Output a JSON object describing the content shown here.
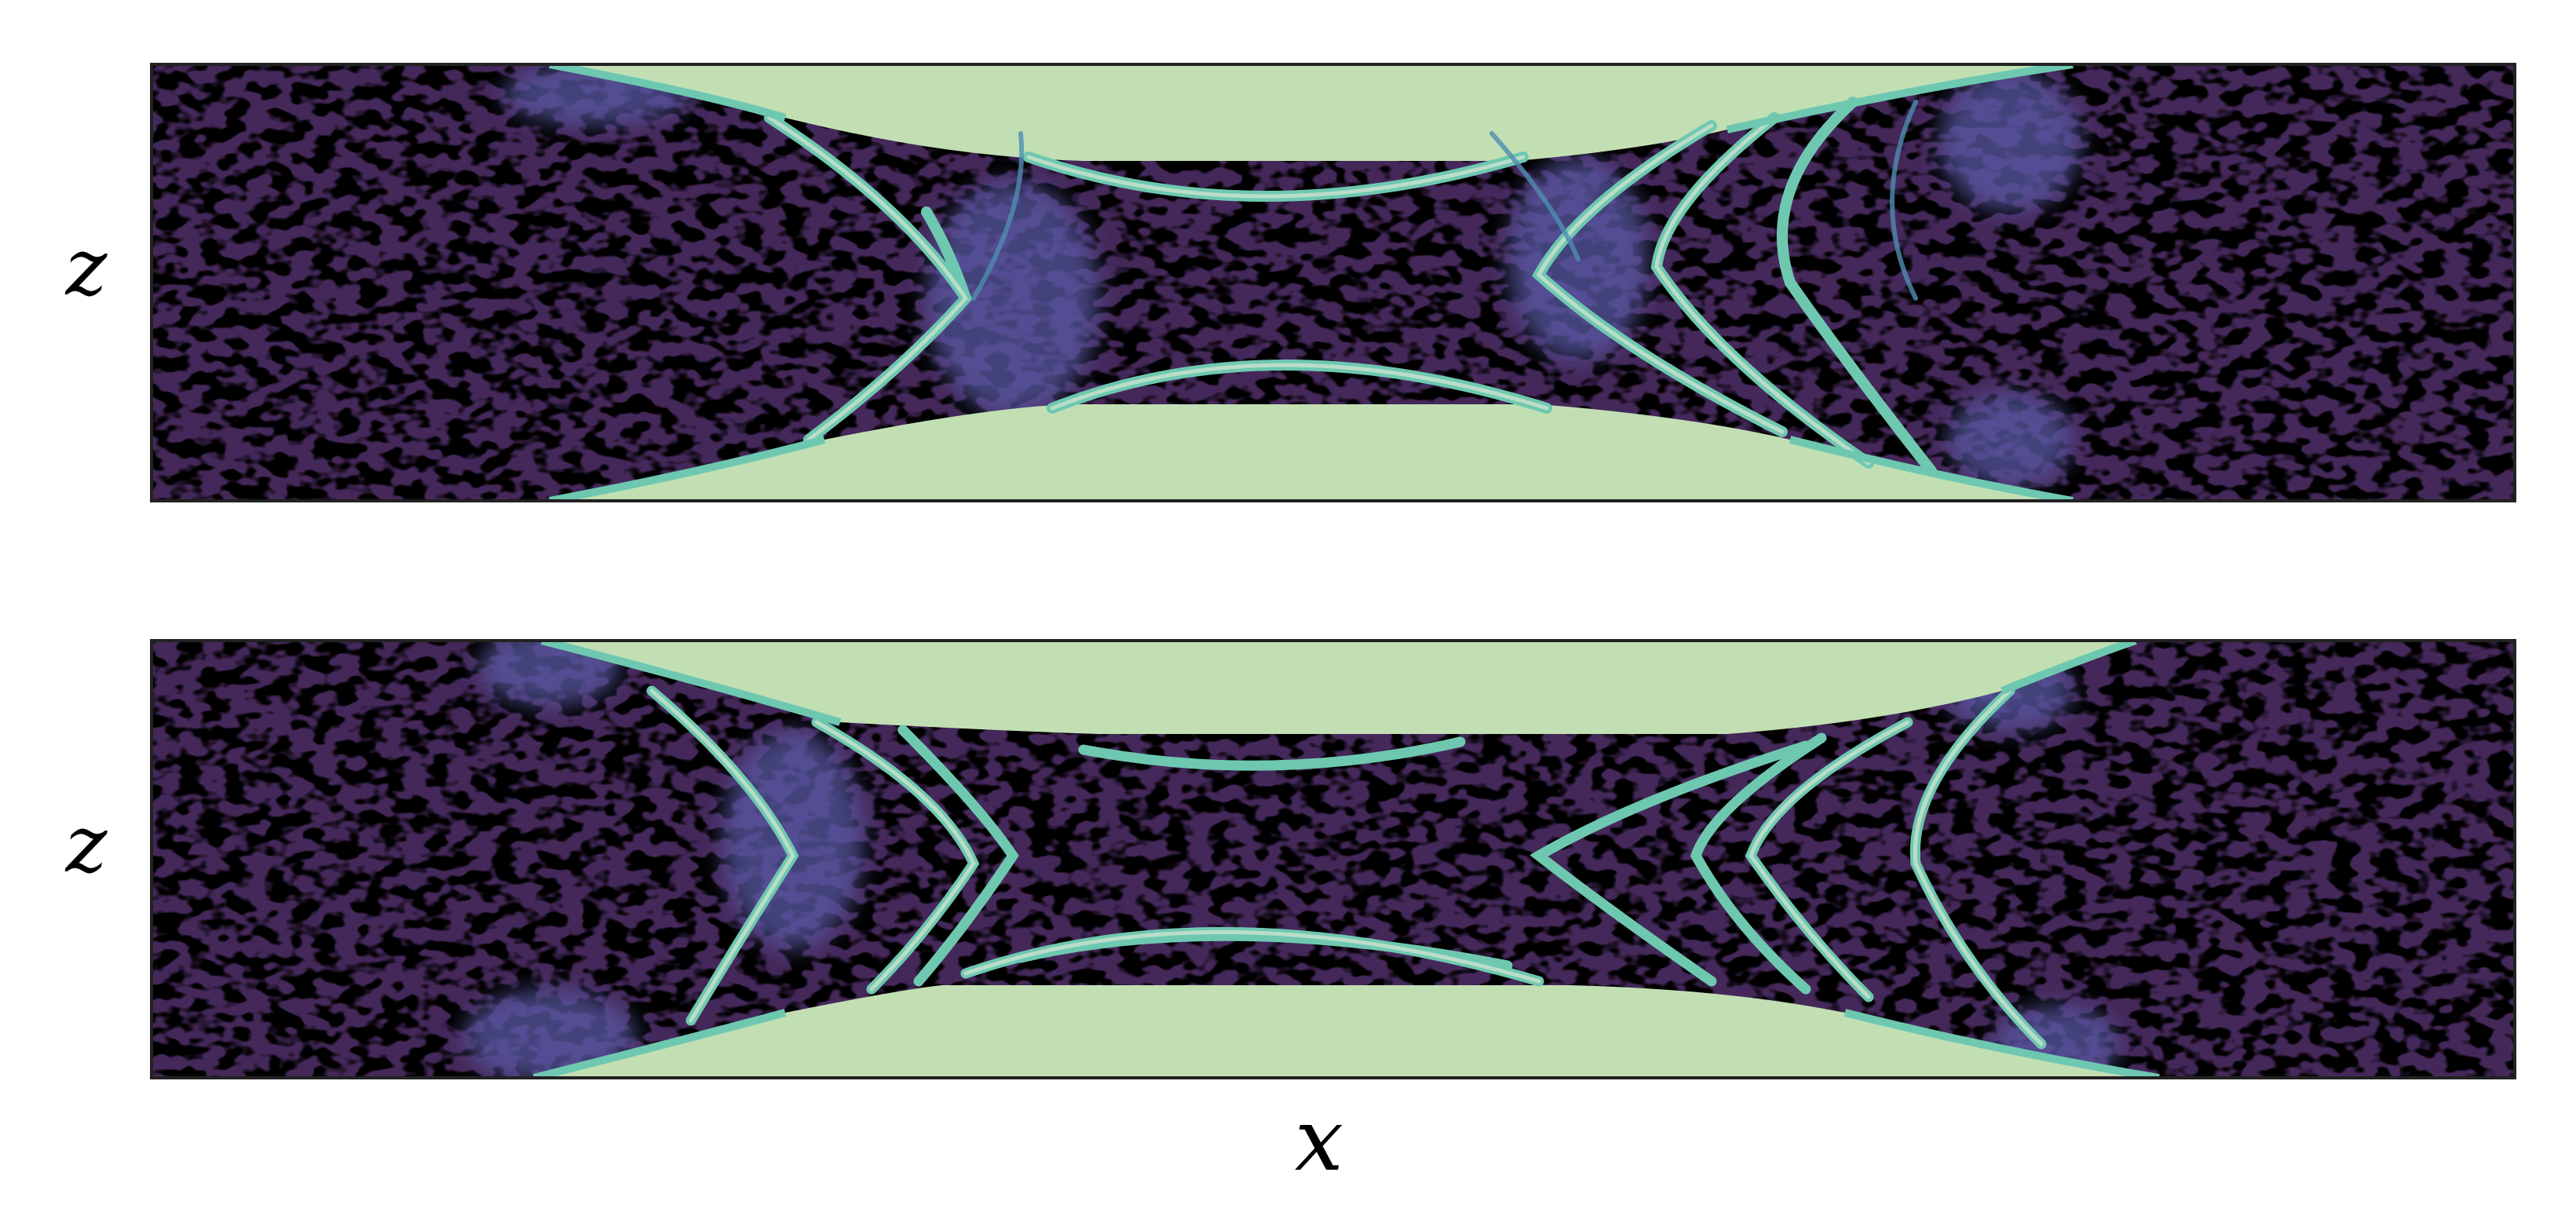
{
  "chart_data": [
    {
      "type": "heatmap",
      "title": "",
      "xlabel": "",
      "ylabel": "z",
      "x_ticks": [],
      "y_ticks": [],
      "grid": false,
      "colors": {
        "background_field": "#45285a",
        "background_low": "#000000",
        "saturated": "#c2dfb4",
        "mid": "#5a5aa6",
        "high": "#6ec8b0",
        "frame": "#222222"
      }
    },
    {
      "type": "heatmap",
      "title": "",
      "xlabel": "x",
      "ylabel": "z",
      "x_ticks": [],
      "y_ticks": [],
      "grid": false,
      "colors": {
        "background_field": "#45285a",
        "background_low": "#000000",
        "saturated": "#c2dfb4",
        "mid": "#5a5aa6",
        "high": "#6ec8b0",
        "frame": "#222222"
      }
    }
  ]
}
